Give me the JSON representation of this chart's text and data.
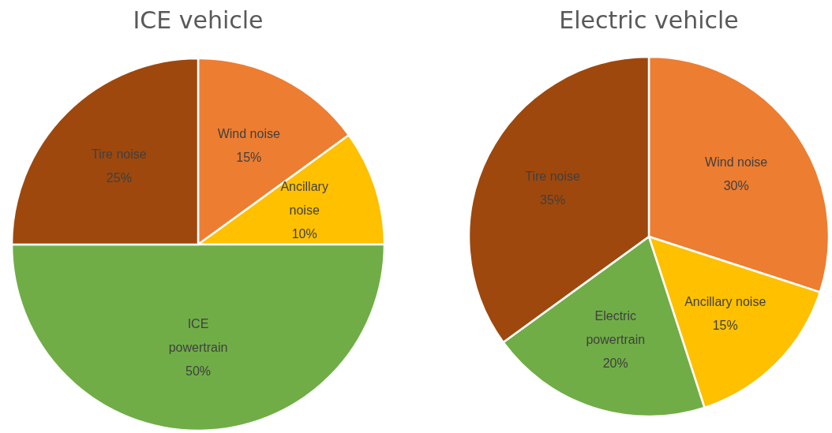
{
  "chart_data": [
    {
      "type": "pie",
      "title": "ICE vehicle",
      "categories": [
        "Wind noise",
        "Ancillary noise",
        "ICE powertrain",
        "Tire noise"
      ],
      "values": [
        15,
        10,
        50,
        25
      ],
      "value_labels": [
        "15%",
        "10%",
        "50%",
        "25%"
      ],
      "colors": [
        "#ed7d31",
        "#ffc000",
        "#70ad47",
        "#9e480e"
      ]
    },
    {
      "type": "pie",
      "title": "Electric vehicle",
      "categories": [
        "Wind noise",
        "Ancillary noise",
        "Electric powertrain",
        "Tire noise"
      ],
      "values": [
        30,
        15,
        20,
        35
      ],
      "value_labels": [
        "30%",
        "15%",
        "20%",
        "35%"
      ],
      "colors": [
        "#ed7d31",
        "#ffc000",
        "#70ad47",
        "#9e480e"
      ]
    }
  ]
}
